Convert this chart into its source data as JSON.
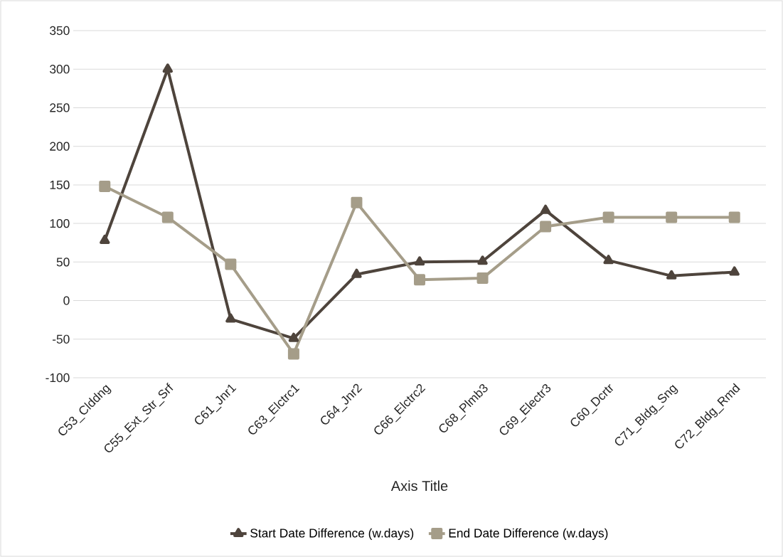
{
  "chart_data": {
    "type": "line",
    "xlabel": "Axis Title",
    "categories": [
      "C53_Clddng",
      "C55_Ext_Str_Srf",
      "C61_Jnr1",
      "C63_Elctrc1",
      "C64_Jnr2",
      "C66_Elctrc2",
      "C68_Plmb3",
      "C69_Electr3",
      "C60_Dcrtr",
      "C71_Bldg_Sng",
      "C72_Bldg_Rmd"
    ],
    "series": [
      {
        "name": "Start Date Difference (w.days)",
        "color": "#4e443c",
        "marker": "triangle",
        "values": [
          78,
          300,
          -24,
          -49,
          34,
          50,
          51,
          117,
          52,
          32,
          37
        ]
      },
      {
        "name": "End Date Difference (w.days)",
        "color": "#a59d89",
        "marker": "square",
        "values": [
          148,
          108,
          47,
          -69,
          127,
          27,
          29,
          96,
          108,
          108,
          108
        ]
      }
    ],
    "ylim": [
      -100,
      350
    ],
    "yticks": [
      -100,
      -50,
      0,
      50,
      100,
      150,
      200,
      250,
      300,
      350
    ],
    "grid": "y",
    "legend": "bottom",
    "line_style": "solid"
  }
}
